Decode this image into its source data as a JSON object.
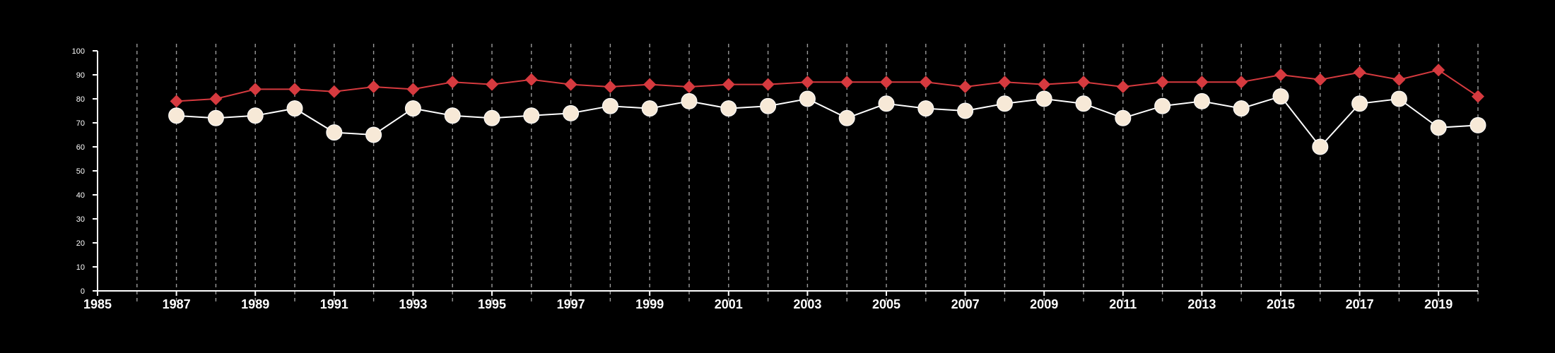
{
  "chart_data": {
    "type": "line",
    "title": "",
    "xlabel": "",
    "ylabel": "",
    "xlim": [
      1985,
      2020
    ],
    "ylim": [
      0,
      100
    ],
    "x_ticks": [
      1985,
      1987,
      1989,
      1991,
      1993,
      1995,
      1997,
      1999,
      2001,
      2003,
      2005,
      2007,
      2009,
      2011,
      2013,
      2015,
      2017,
      2019
    ],
    "y_ticks": [
      0,
      10,
      20,
      30,
      40,
      50,
      60,
      70,
      80,
      90,
      100
    ],
    "x_tick_labels": [
      "1985",
      "1987",
      "1989",
      "1991",
      "1993",
      "1995",
      "1997",
      "1999",
      "2001",
      "2003",
      "2005",
      "2007",
      "2009",
      "2011",
      "2013",
      "2015",
      "2017",
      "2019"
    ],
    "y_tick_labels": [
      "0",
      "10",
      "20",
      "30",
      "40",
      "50",
      "60",
      "70",
      "80",
      "90",
      "100"
    ],
    "grid": "vertical dashed lines at every year from 1986 to 2020",
    "background": "#000000",
    "x": [
      1987,
      1988,
      1989,
      1990,
      1991,
      1992,
      1993,
      1994,
      1995,
      1996,
      1997,
      1998,
      1999,
      2000,
      2001,
      2002,
      2003,
      2004,
      2005,
      2006,
      2007,
      2008,
      2009,
      2010,
      2011,
      2012,
      2013,
      2014,
      2015,
      2016,
      2017,
      2018,
      2019,
      2020
    ],
    "series": [
      {
        "marker": "diamond",
        "color": "#d63a3f",
        "values": [
          79,
          80,
          84,
          84,
          83,
          85,
          84,
          87,
          86,
          88,
          86,
          85,
          86,
          85,
          86,
          86,
          87,
          87,
          87,
          87,
          85,
          87,
          86,
          87,
          85,
          87,
          87,
          87,
          90,
          88,
          91,
          88,
          92,
          81
        ]
      },
      {
        "marker": "circle",
        "color": "#f7e9d7",
        "line_color": "#ffffff",
        "values": [
          73,
          72,
          73,
          76,
          66,
          65,
          76,
          73,
          72,
          73,
          74,
          77,
          76,
          79,
          76,
          77,
          80,
          72,
          78,
          76,
          75,
          78,
          80,
          78,
          72,
          77,
          79,
          76,
          81,
          60,
          78,
          80,
          68,
          69
        ]
      }
    ]
  }
}
